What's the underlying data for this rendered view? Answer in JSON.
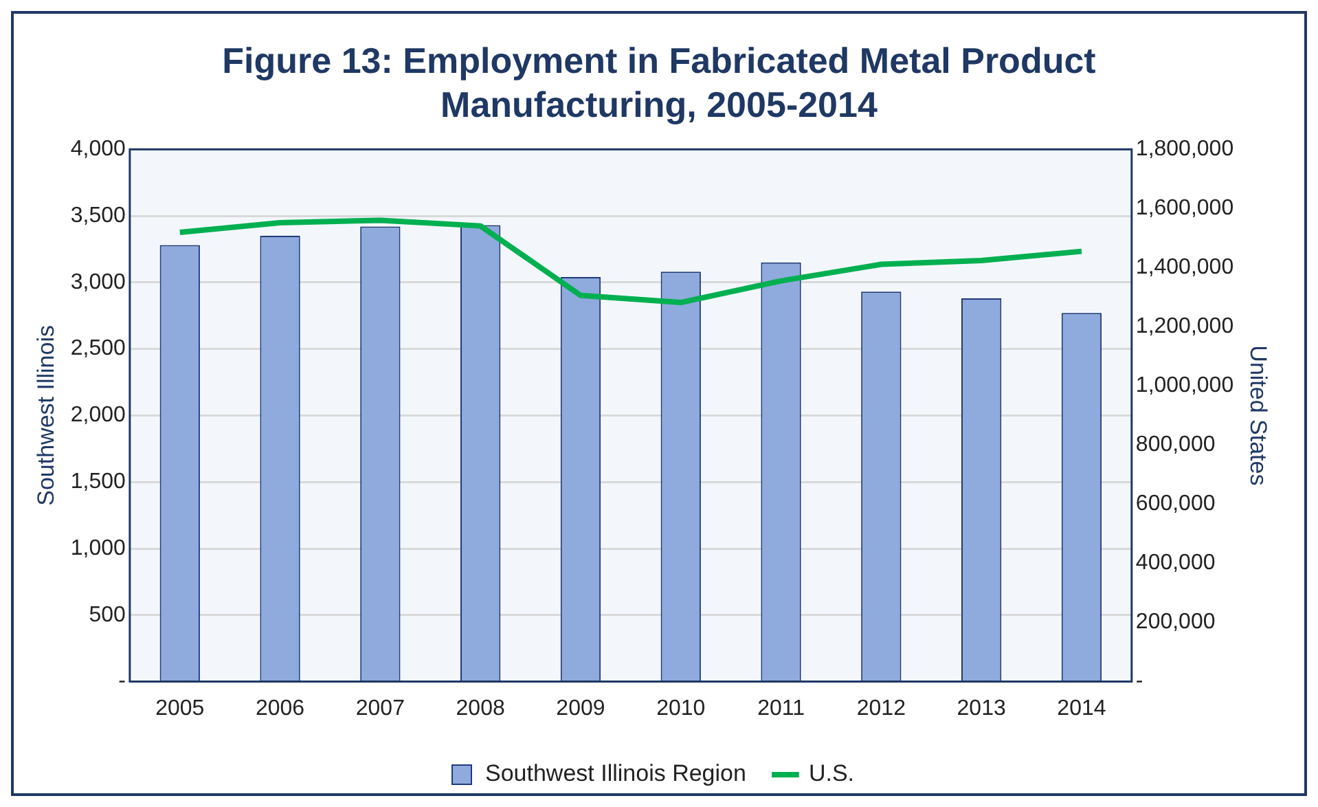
{
  "chart_data": {
    "type": "bar",
    "title": "Figure 13: Employment in Fabricated Metal Product Manufacturing, 2005-2014",
    "ylabel": "Southwest Illinois",
    "y2label": "United States",
    "categories": [
      "2005",
      "2006",
      "2007",
      "2008",
      "2009",
      "2010",
      "2011",
      "2012",
      "2013",
      "2014"
    ],
    "series": [
      {
        "name": "Southwest Illinois Region",
        "color": "#8faadc",
        "values": [
          3280,
          3350,
          3420,
          3430,
          3040,
          3080,
          3150,
          2930,
          2880,
          2770
        ]
      },
      {
        "name": "U.S.",
        "type": "line",
        "axis": "y2",
        "color": "#00b050",
        "values": [
          1519000,
          1552000,
          1560000,
          1541000,
          1306000,
          1282000,
          1355000,
          1411000,
          1424000,
          1455000
        ]
      }
    ],
    "ylim": [
      0,
      4000
    ],
    "yticks": [
      {
        "value": 0,
        "label": "-"
      },
      {
        "value": 500,
        "label": "500"
      },
      {
        "value": 1000,
        "label": "1,000"
      },
      {
        "value": 1500,
        "label": "1,500"
      },
      {
        "value": 2000,
        "label": "2,000"
      },
      {
        "value": 2500,
        "label": "2,500"
      },
      {
        "value": 3000,
        "label": "3,000"
      },
      {
        "value": 3500,
        "label": "3,500"
      },
      {
        "value": 4000,
        "label": "4,000"
      }
    ],
    "y2lim": [
      0,
      1800000
    ],
    "y2ticks": [
      {
        "value": 0,
        "label": "-"
      },
      {
        "value": 200000,
        "label": "200,000"
      },
      {
        "value": 400000,
        "label": "400,000"
      },
      {
        "value": 600000,
        "label": "600,000"
      },
      {
        "value": 800000,
        "label": "800,000"
      },
      {
        "value": 1000000,
        "label": "1,000,000"
      },
      {
        "value": 1200000,
        "label": "1,200,000"
      },
      {
        "value": 1400000,
        "label": "1,400,000"
      },
      {
        "value": 1600000,
        "label": "1,600,000"
      },
      {
        "value": 1800000,
        "label": "1,800,000"
      }
    ],
    "grid": "y",
    "legend": "bottom",
    "marker": "none"
  }
}
